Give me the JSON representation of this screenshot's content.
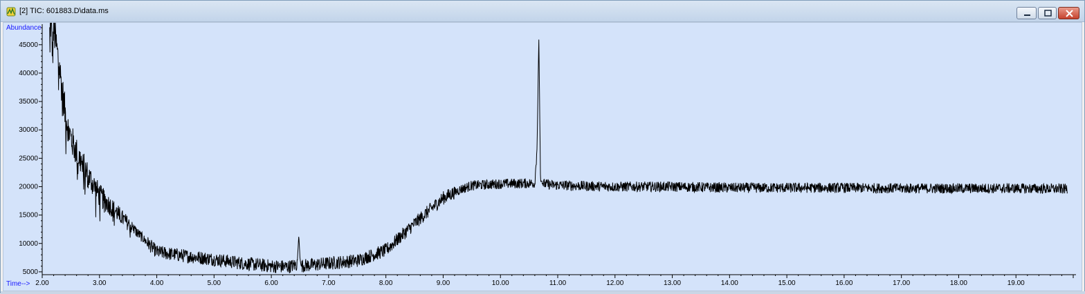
{
  "window": {
    "title": "[2] TIC: 601883.D\\data.ms",
    "icon": "chromatogram-app-icon",
    "buttons": [
      "minimize",
      "maximize",
      "close"
    ]
  },
  "chart_data": {
    "type": "line",
    "ylabel": "Abundance",
    "xlabel": "Time-->",
    "xlim": [
      2.0,
      20.0
    ],
    "ylim": [
      4500,
      48500
    ],
    "x_ticks": [
      "2.00",
      "3.00",
      "4.00",
      "5.00",
      "6.00",
      "7.00",
      "8.00",
      "9.00",
      "10.00",
      "11.00",
      "12.00",
      "13.00",
      "14.00",
      "15.00",
      "16.00",
      "17.00",
      "18.00",
      "19.00"
    ],
    "y_ticks": [
      "5000",
      "10000",
      "15000",
      "20000",
      "25000",
      "30000",
      "35000",
      "40000",
      "45000"
    ],
    "line_color": "#000000",
    "background": "#d4e3fa",
    "series": [
      {
        "x": [
          2.13,
          2.16,
          2.18,
          2.2,
          2.3,
          2.4,
          2.5,
          2.6,
          2.8,
          3.0,
          3.2,
          3.4,
          3.6,
          3.8,
          4.0,
          4.5,
          5.0,
          5.5,
          6.0,
          6.3,
          6.45,
          6.48,
          6.5,
          6.52,
          6.55,
          6.7,
          7.0,
          7.5,
          8.0,
          8.5,
          9.0,
          9.3,
          9.5,
          10.0,
          10.5,
          10.6,
          10.64,
          10.67,
          10.7,
          10.72,
          10.75,
          10.9,
          11.5,
          12.0,
          13.0,
          14.0,
          15.0,
          16.0,
          17.0,
          18.0,
          19.0,
          19.9
        ],
        "y": [
          47000,
          50000,
          43000,
          48000,
          41000,
          33000,
          28500,
          26000,
          22000,
          18500,
          16500,
          14500,
          12500,
          10500,
          8500,
          7800,
          7200,
          6500,
          6000,
          5900,
          6300,
          11500,
          7500,
          6000,
          6100,
          6200,
          6500,
          7000,
          8800,
          13500,
          18000,
          19500,
          20200,
          20500,
          20600,
          20600,
          27000,
          46500,
          20900,
          21000,
          20500,
          20300,
          20100,
          20000,
          20000,
          19800,
          19800,
          19800,
          19700,
          19700,
          19700,
          19600
        ]
      }
    ],
    "noise_amplitude": {
      "early": 3500,
      "mid": 1200,
      "late": 900
    }
  }
}
